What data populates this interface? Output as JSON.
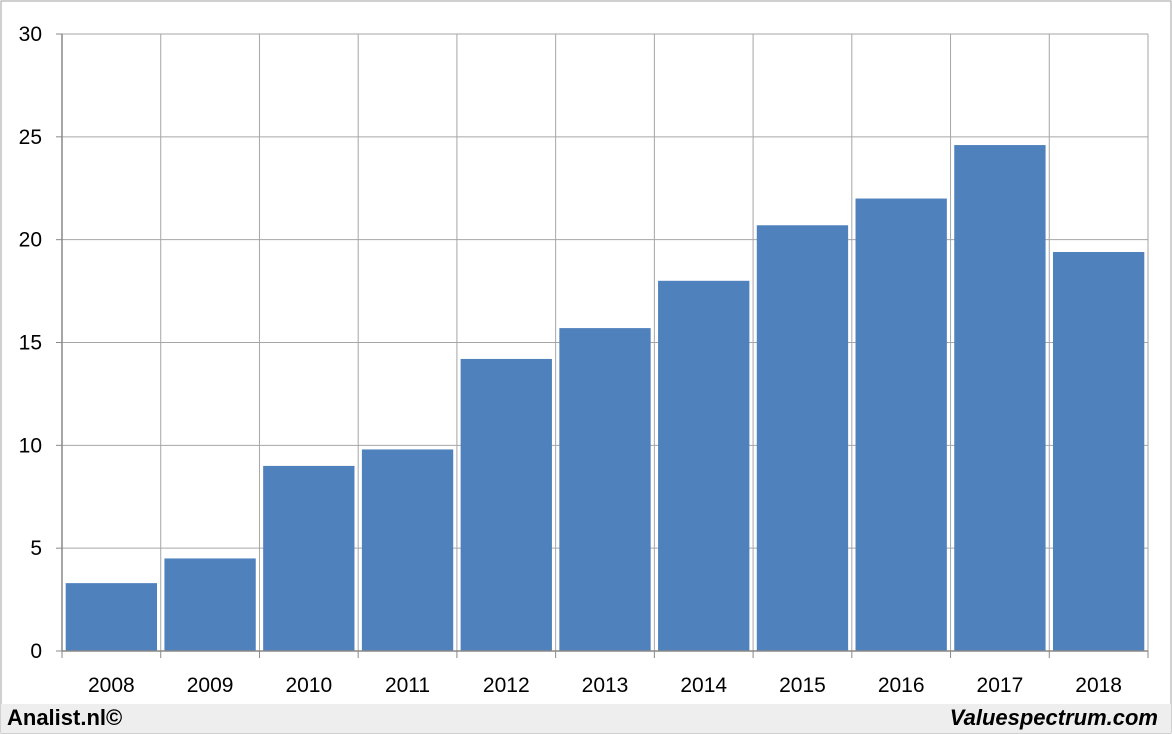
{
  "chart_data": {
    "type": "bar",
    "title": "",
    "xlabel": "",
    "ylabel": "",
    "categories": [
      "2008",
      "2009",
      "2010",
      "2011",
      "2012",
      "2013",
      "2014",
      "2015",
      "2016",
      "2017",
      "2018"
    ],
    "values": [
      3.3,
      4.5,
      9.0,
      9.8,
      14.2,
      15.7,
      18.0,
      20.7,
      22.0,
      24.6,
      19.4
    ],
    "ylim": [
      0,
      30
    ],
    "yticks": [
      0,
      5,
      10,
      15,
      20,
      25,
      30
    ],
    "grid": true,
    "legend": "none",
    "bar_color": "#4f81bd"
  },
  "footer": {
    "left": "Analist.nl©",
    "right": "Valuespectrum.com"
  }
}
